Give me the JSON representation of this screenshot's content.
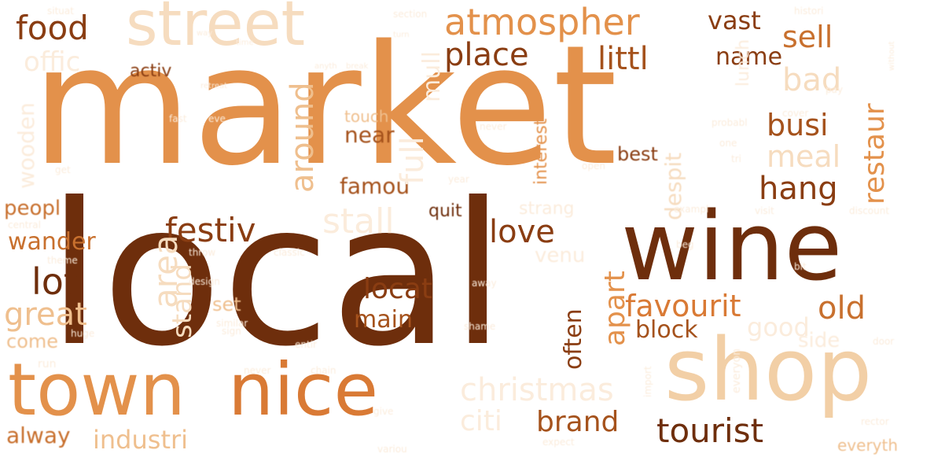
{
  "palette": {
    "darkest": "#6e2e0c",
    "dark": "#8a3d12",
    "mid_dark": "#a5521c",
    "mid": "#c8702e",
    "orange": "#e3914b",
    "light": "#efbf8e",
    "lighter": "#f6dcbf",
    "faint": "#fbecdc"
  },
  "words": [
    {
      "text": "market",
      "color": "#e3914b"
    },
    {
      "text": "local",
      "color": "#6e2e0c"
    },
    {
      "text": "wine",
      "color": "#6e2e0c"
    },
    {
      "text": "shop",
      "color": "#f2cfa6"
    },
    {
      "text": "town",
      "color": "#e3914b"
    },
    {
      "text": "nice",
      "color": "#d97a35"
    },
    {
      "text": "street",
      "color": "#f6dcbf"
    },
    {
      "text": "atmospher",
      "color": "#e3914b"
    },
    {
      "text": "food",
      "color": "#8a3d12"
    },
    {
      "text": "sell",
      "color": "#c8702e"
    },
    {
      "text": "place",
      "color": "#8a3d12"
    },
    {
      "text": "littl",
      "color": "#a5521c"
    },
    {
      "text": "vast",
      "color": "#8a3d12"
    },
    {
      "text": "name",
      "color": "#8a3d12"
    },
    {
      "text": "busi",
      "color": "#a5521c"
    },
    {
      "text": "restaur",
      "color": "#e3914b"
    },
    {
      "text": "bad",
      "color": "#f6dcbf"
    },
    {
      "text": "around",
      "color": "#efbf8e"
    },
    {
      "text": "hang",
      "color": "#8a3d12"
    },
    {
      "text": "meal",
      "color": "#f6dcbf"
    },
    {
      "text": "festiv",
      "color": "#8a3d12"
    },
    {
      "text": "stall",
      "color": "#fbecdc"
    },
    {
      "text": "love",
      "color": "#8a3d12"
    },
    {
      "text": "lot",
      "color": "#6e2e0c"
    },
    {
      "text": "great",
      "color": "#efbf8e"
    },
    {
      "text": "favourit",
      "color": "#d97a35"
    },
    {
      "text": "old",
      "color": "#c8702e"
    },
    {
      "text": "block",
      "color": "#a5521c"
    },
    {
      "text": "main",
      "color": "#a5521c"
    },
    {
      "text": "locat",
      "color": "#8a3d12"
    },
    {
      "text": "often",
      "color": "#8a3d12"
    },
    {
      "text": "apart",
      "color": "#e3914b"
    },
    {
      "text": "christmas",
      "color": "#fbecdc"
    },
    {
      "text": "brand",
      "color": "#a5521c"
    },
    {
      "text": "tourist",
      "color": "#6e2e0c"
    },
    {
      "text": "citi",
      "color": "#fbecdc"
    },
    {
      "text": "industri",
      "color": "#efbf8e"
    },
    {
      "text": "alway",
      "color": "#c8702e"
    },
    {
      "text": "wander",
      "color": "#c8702e"
    },
    {
      "text": "peopl",
      "color": "#c8702e"
    },
    {
      "text": "come",
      "color": "#efbf8e"
    },
    {
      "text": "famou",
      "color": "#a5521c"
    },
    {
      "text": "near",
      "color": "#a5521c"
    },
    {
      "text": "best",
      "color": "#8a3d12"
    },
    {
      "text": "quit",
      "color": "#6e2e0c"
    },
    {
      "text": "activ",
      "color": "#8a3d12"
    },
    {
      "text": "offic",
      "color": "#fbecdc"
    },
    {
      "text": "touch",
      "color": "#efbf8e"
    },
    {
      "text": "interest",
      "color": "#e3914b"
    },
    {
      "text": "area",
      "color": "#f6dcbf"
    },
    {
      "text": "stand",
      "color": "#f6dcbf"
    },
    {
      "text": "set",
      "color": "#efbf8e"
    },
    {
      "text": "venu",
      "color": "#fbecdc"
    },
    {
      "text": "good",
      "color": "#fbecdc"
    },
    {
      "text": "everyth",
      "color": "#efbf8e"
    },
    {
      "text": "despit",
      "color": "#f6dcbf"
    },
    {
      "text": "full",
      "color": "#fbecdc"
    },
    {
      "text": "lunch",
      "color": "#fbecdc"
    },
    {
      "text": "mull",
      "color": "#fbecdc"
    },
    {
      "text": "wooden",
      "color": "#fbecdc"
    },
    {
      "text": "side",
      "color": "#fbecdc"
    },
    {
      "text": "histori",
      "color": "#fbecdc"
    },
    {
      "text": "section",
      "color": "#fbecdc"
    },
    {
      "text": "situat",
      "color": "#fbecdc"
    },
    {
      "text": "way",
      "color": "#fbecdc"
    },
    {
      "text": "time",
      "color": "#fbecdc"
    },
    {
      "text": "retreat",
      "color": "#fbecdc"
    },
    {
      "text": "anyth",
      "color": "#fbecdc"
    },
    {
      "text": "break",
      "color": "#fbecdc"
    },
    {
      "text": "turn",
      "color": "#fbecdc"
    },
    {
      "text": "without",
      "color": "#fbecdc"
    },
    {
      "text": "fast",
      "color": "#fbecdc"
    },
    {
      "text": "eve",
      "color": "#fbecdc"
    },
    {
      "text": "probabl",
      "color": "#fbecdc"
    },
    {
      "text": "never",
      "color": "#fbecdc"
    },
    {
      "text": "get",
      "color": "#fbecdc"
    },
    {
      "text": "open",
      "color": "#fbecdc"
    },
    {
      "text": "exampl",
      "color": "#fbecdc"
    },
    {
      "text": "visit",
      "color": "#fbecdc"
    },
    {
      "text": "discount",
      "color": "#fbecdc"
    },
    {
      "text": "rector",
      "color": "#fbecdc"
    },
    {
      "text": "strang",
      "color": "#fbecdc"
    },
    {
      "text": "central",
      "color": "#fbecdc"
    },
    {
      "text": "classic",
      "color": "#fbecdc"
    },
    {
      "text": "design",
      "color": "#fbecdc"
    },
    {
      "text": "throw",
      "color": "#fbecdc"
    },
    {
      "text": "theme",
      "color": "#fbecdc"
    },
    {
      "text": "beg",
      "color": "#fbecdc"
    },
    {
      "text": "bit",
      "color": "#fbecdc"
    },
    {
      "text": "run",
      "color": "#fbecdc"
    },
    {
      "text": "shame",
      "color": "#fbecdc"
    },
    {
      "text": "away",
      "color": "#fbecdc"
    },
    {
      "text": "chain",
      "color": "#fbecdc"
    },
    {
      "text": "never",
      "color": "#fbecdc"
    },
    {
      "text": "import",
      "color": "#fbecdc"
    },
    {
      "text": "everyon",
      "color": "#fbecdc"
    },
    {
      "text": "door",
      "color": "#fbecdc"
    },
    {
      "text": "give",
      "color": "#fbecdc"
    },
    {
      "text": "variou",
      "color": "#fbecdc"
    },
    {
      "text": "expect",
      "color": "#fbecdc"
    },
    {
      "text": "cover",
      "color": "#fbecdc"
    },
    {
      "text": "pay",
      "color": "#fbecdc"
    },
    {
      "text": "one",
      "color": "#fbecdc"
    },
    {
      "text": "tri",
      "color": "#fbecdc"
    },
    {
      "text": "year",
      "color": "#fbecdc"
    },
    {
      "text": "sign",
      "color": "#fbecdc"
    },
    {
      "text": "huge",
      "color": "#fbecdc"
    },
    {
      "text": "similar",
      "color": "#fbecdc"
    },
    {
      "text": "entir",
      "color": "#fbecdc"
    }
  ]
}
